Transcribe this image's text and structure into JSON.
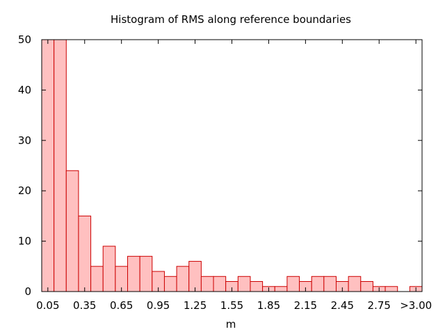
{
  "chart_data": {
    "type": "bar",
    "title": "Histogram of RMS along reference boundaries",
    "xlabel": "m",
    "ylabel": "",
    "ylim": [
      0,
      50
    ],
    "yticks": [
      0,
      10,
      20,
      30,
      40,
      50
    ],
    "x_tick_labels": [
      "0.05",
      "0.35",
      "0.65",
      "0.95",
      "1.25",
      "1.55",
      "1.85",
      "2.15",
      "2.45",
      "2.75",
      ">3.00"
    ],
    "bin_width": 0.1,
    "bins": [
      {
        "start": 0.0,
        "value": 50
      },
      {
        "start": 0.1,
        "value": 50
      },
      {
        "start": 0.2,
        "value": 24
      },
      {
        "start": 0.3,
        "value": 15
      },
      {
        "start": 0.4,
        "value": 5
      },
      {
        "start": 0.5,
        "value": 9
      },
      {
        "start": 0.6,
        "value": 5
      },
      {
        "start": 0.7,
        "value": 7
      },
      {
        "start": 0.8,
        "value": 7
      },
      {
        "start": 0.9,
        "value": 4
      },
      {
        "start": 1.0,
        "value": 3
      },
      {
        "start": 1.1,
        "value": 5
      },
      {
        "start": 1.2,
        "value": 6
      },
      {
        "start": 1.3,
        "value": 3
      },
      {
        "start": 1.4,
        "value": 3
      },
      {
        "start": 1.5,
        "value": 2
      },
      {
        "start": 1.6,
        "value": 3
      },
      {
        "start": 1.7,
        "value": 2
      },
      {
        "start": 1.8,
        "value": 1
      },
      {
        "start": 1.9,
        "value": 1
      },
      {
        "start": 2.0,
        "value": 3
      },
      {
        "start": 2.1,
        "value": 2
      },
      {
        "start": 2.2,
        "value": 3
      },
      {
        "start": 2.3,
        "value": 3
      },
      {
        "start": 2.4,
        "value": 2
      },
      {
        "start": 2.5,
        "value": 3
      },
      {
        "start": 2.6,
        "value": 2
      },
      {
        "start": 2.7,
        "value": 1
      },
      {
        "start": 2.8,
        "value": 1
      },
      {
        "start": 2.9,
        "value": 0
      },
      {
        "start": 3.0,
        "value": 1
      }
    ],
    "grid": false,
    "legend": "none",
    "bar_fill": "#ffc0c0",
    "bar_stroke": "#cc0000"
  }
}
